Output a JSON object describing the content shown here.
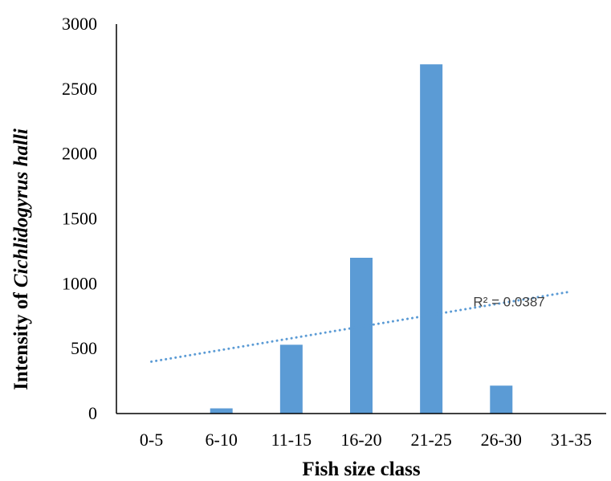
{
  "chart_data": {
    "type": "bar",
    "categories": [
      "0-5",
      "6-10",
      "11-15",
      "16-20",
      "21-25",
      "26-30",
      "31-35"
    ],
    "series": [
      {
        "values": [
          0,
          40,
          530,
          1200,
          2690,
          215,
          0
        ]
      }
    ],
    "xlabel": "Fish size class",
    "ylabel": {
      "prefix": "Intensity of ",
      "species": "Cichlidogyrus halli"
    },
    "ylim": [
      0,
      3000
    ],
    "yticks": [
      0,
      500,
      1000,
      1500,
      2000,
      2500,
      3000
    ],
    "ytick_labels": [
      "0",
      "500",
      "1000",
      "1500",
      "2000",
      "2500",
      "3000"
    ],
    "grid": false,
    "legend": "none",
    "trendline": {
      "type": "linear",
      "start": {
        "x": "0-5",
        "y": 400
      },
      "end": {
        "x": "31-35",
        "y": 940
      },
      "label": "R² = 0.0387",
      "style": "dotted"
    },
    "colors": {
      "bar": "#5b9bd5",
      "trendline": "#5b9bd5",
      "axis": "#000000"
    }
  }
}
